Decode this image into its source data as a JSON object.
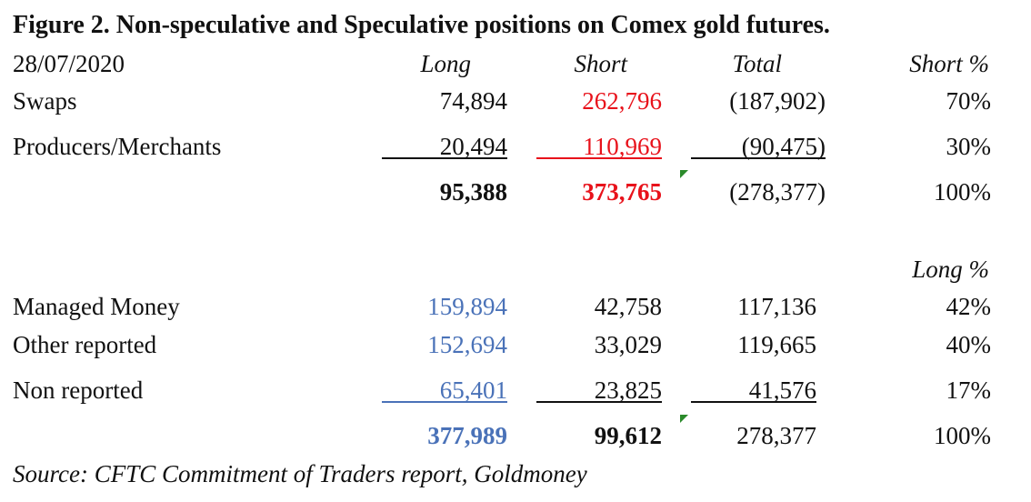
{
  "title": "Figure 2. Non-speculative and Speculative positions on Comex gold futures.",
  "date": "28/07/2020",
  "columns": [
    "Long",
    "Short",
    "Total",
    "Short %"
  ],
  "section1": {
    "rows": [
      [
        "Swaps",
        "74,894",
        "262,796",
        "(187,902)",
        "70%"
      ],
      [
        "Producers/Merchants",
        "20,494",
        "110,969",
        "(90,475)",
        "30%"
      ]
    ],
    "totals": [
      "95,388",
      "373,765",
      "(278,377)",
      "100%"
    ]
  },
  "section2": {
    "header": "Long %",
    "rows": [
      [
        "Managed Money",
        "159,894",
        "42,758",
        "117,136",
        "42%"
      ],
      [
        "Other reported",
        "152,694",
        "33,029",
        "119,665",
        "40%"
      ],
      [
        "Non reported",
        "65,401",
        "23,825",
        "41,576",
        "17%"
      ]
    ],
    "totals": [
      "377,989",
      "99,612",
      "278,377",
      "100%"
    ]
  },
  "source": "Source: CFTC Commitment of Traders report, Goldmoney"
}
